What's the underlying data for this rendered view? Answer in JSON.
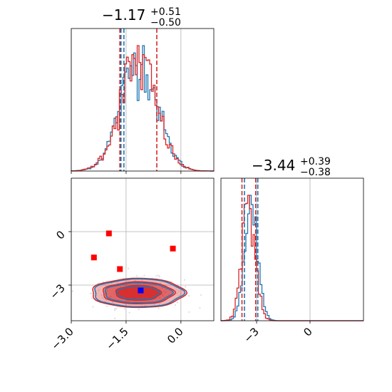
{
  "chart_data": {
    "type": "corner",
    "params": [
      {
        "median": "−1.17",
        "plus": "+0.51",
        "minus": "−0.50",
        "q16": -1.67,
        "q50": -1.17,
        "q84": -0.66
      },
      {
        "median": "−3.44",
        "plus": "+0.39",
        "minus": "−0.38",
        "q16": -3.82,
        "q50": -3.44,
        "q84": -3.05
      }
    ],
    "p1_range": [
      -3.0,
      0.9
    ],
    "p2_range": [
      -5.0,
      3.0
    ],
    "p1_ticks": [
      {
        "v": -3.0,
        "label": "−3.0"
      },
      {
        "v": -1.5,
        "label": "−1.5"
      },
      {
        "v": 0.0,
        "label": "0.0"
      }
    ],
    "p2_ticks_y": [
      {
        "v": 0,
        "label": "0"
      },
      {
        "v": -3,
        "label": "−3"
      }
    ],
    "p2_ticks_x": [
      {
        "v": -3,
        "label": "−3"
      },
      {
        "v": 0,
        "label": "0"
      }
    ],
    "series_colors": {
      "blue": "#1f77b4",
      "red": "#d62728",
      "marker_blue": "#0000ff",
      "marker_red": "#ff0000"
    },
    "blue_quantiles_p1": [
      -1.64,
      -1.56
    ],
    "blue_quantiles_p2": [
      -3.68,
      -2.93
    ],
    "red_markers": [
      [
        -1.97,
        -0.1
      ],
      [
        -2.38,
        -1.45
      ],
      [
        -1.67,
        -2.1
      ],
      [
        -0.22,
        -0.95
      ]
    ],
    "blue_marker": [
      -1.1,
      -3.3
    ],
    "grid": true
  }
}
